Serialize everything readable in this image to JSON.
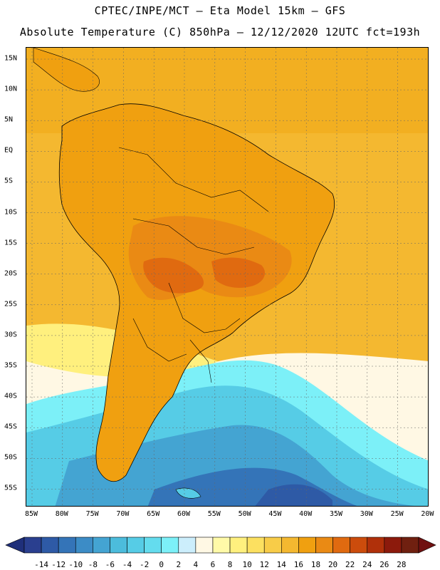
{
  "title_line1": "CPTEC/INPE/MCT –  Eta Model 15km – GFS",
  "title_line2": "Absolute Temperature (C) 850hPa – 12/12/2020 12UTC fct=193h",
  "lat_labels": [
    "15N",
    "10N",
    "5N",
    "EQ",
    "5S",
    "10S",
    "15S",
    "20S",
    "25S",
    "30S",
    "35S",
    "40S",
    "45S",
    "50S",
    "55S"
  ],
  "lon_labels": [
    "85W",
    "80W",
    "75W",
    "70W",
    "65W",
    "60W",
    "55W",
    "50W",
    "45W",
    "40W",
    "35W",
    "30W",
    "25W",
    "20W"
  ],
  "colorbar": {
    "values": [
      "-14",
      "-12",
      "-10",
      "-8",
      "-6",
      "-4",
      "-2",
      "0",
      "2",
      "4",
      "6",
      "8",
      "10",
      "12",
      "14",
      "16",
      "18",
      "20",
      "22",
      "24",
      "26",
      "28"
    ],
    "colors": [
      "#2a3f8f",
      "#2e5aa6",
      "#3474b8",
      "#3c8cc6",
      "#44a4d2",
      "#4cbcdc",
      "#56cce6",
      "#64dcee",
      "#7cf0f8",
      "#cceefc",
      "#fff8e4",
      "#fffaa8",
      "#fff07e",
      "#fce060",
      "#f8cc48",
      "#f4b830",
      "#f0a010",
      "#ea8a14",
      "#e06a10",
      "#cc4c0c",
      "#b0300a",
      "#8c1a0c",
      "#702010"
    ]
  },
  "map": {
    "region": "South America",
    "ocean_warm_color": "#f0a818",
    "land_color": "#f0a010",
    "hot_color": "#e08220",
    "cold_color": "#56cce6",
    "deep_cold_color": "#2e6aa8",
    "border_color": "#000000"
  }
}
